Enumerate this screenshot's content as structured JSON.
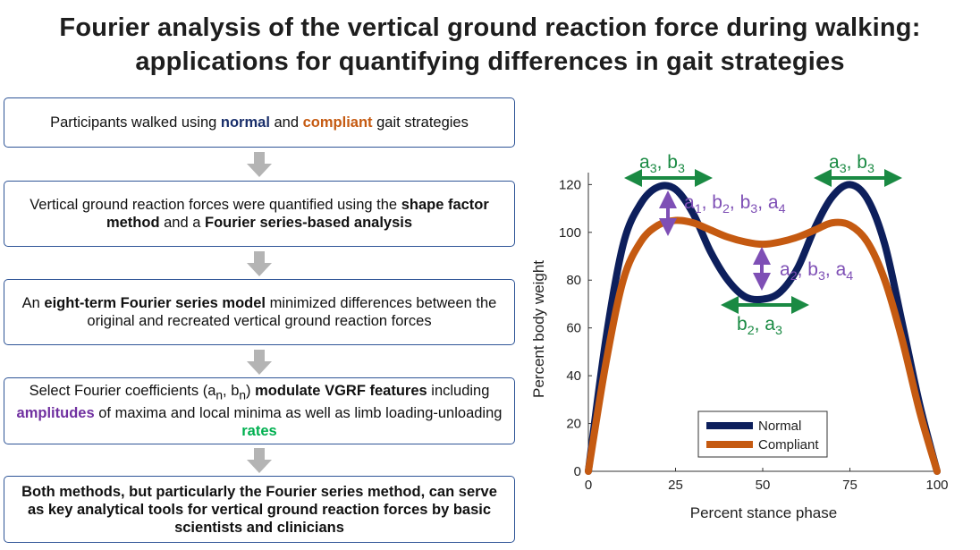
{
  "title": {
    "line1": "Fourier analysis of the vertical ground reaction force during walking:",
    "line2": "applications for quantifying differences in gait strategies"
  },
  "flow": {
    "box1": {
      "t1": "Participants walked using ",
      "normal": "normal",
      "t2": " and ",
      "compliant": "compliant",
      "t3": " gait strategies"
    },
    "box2": {
      "t1": "Vertical ground reaction forces were quantified using the ",
      "b1": "shape factor method",
      "t2": " and a ",
      "b2": "Fourier series-based analysis"
    },
    "box3": {
      "t1": "An ",
      "b1": "eight-term Fourier series model",
      "t2": " minimized differences between the original and recreated vertical ground reaction forces"
    },
    "box4": {
      "t1": "Select Fourier coefficients (a",
      "s1": "n",
      "t2": ", b",
      "s2": "n",
      "t3": ") ",
      "b1": "modulate VGRF features",
      "t4": " including ",
      "amplitudes": "amplitudes",
      "t5": " of maxima and local minima as well as limb loading-unloading ",
      "rates": "rates"
    },
    "box5": {
      "text": "Both methods, but particularly the Fourier series method, can serve as key analytical tools for vertical ground reaction forces by basic scientists and clinicians"
    }
  },
  "chart_data": {
    "type": "line",
    "xlabel": "Percent stance phase",
    "ylabel": "Percent body weight",
    "xlim": [
      0,
      100
    ],
    "ylim": [
      0,
      125
    ],
    "xticks": [
      0,
      25,
      50,
      75,
      100
    ],
    "yticks": [
      0,
      20,
      40,
      60,
      80,
      100,
      120
    ],
    "grid": false,
    "legend": "bottom-center",
    "series": [
      {
        "name": "Normal",
        "color": "#0d1f5c",
        "x": [
          0,
          5,
          10,
          15,
          20,
          25,
          30,
          35,
          40,
          45,
          50,
          55,
          60,
          65,
          70,
          75,
          80,
          85,
          90,
          95,
          100
        ],
        "y": [
          0,
          55,
          95,
          112,
          119,
          118,
          108,
          92,
          80,
          73,
          72,
          75,
          85,
          102,
          115,
          120,
          114,
          95,
          62,
          28,
          0
        ]
      },
      {
        "name": "Compliant",
        "color": "#c55a11",
        "x": [
          0,
          5,
          10,
          15,
          20,
          25,
          30,
          35,
          40,
          45,
          50,
          55,
          60,
          65,
          70,
          75,
          80,
          85,
          90,
          95,
          100
        ],
        "y": [
          0,
          45,
          80,
          96,
          103,
          105,
          104,
          101,
          98,
          96,
          95,
          96,
          98,
          101,
          104,
          103,
          96,
          80,
          55,
          25,
          0
        ]
      }
    ],
    "annotations": {
      "green_color": "#1a8a43",
      "purple_color": "#7e4fb5",
      "left_top": {
        "a": "a",
        "s1": "3",
        "m": ", b",
        "s2": "3"
      },
      "right_top": {
        "a": "a",
        "s1": "3",
        "m": ", b",
        "s2": "3"
      },
      "bottom_mid": {
        "a": "b",
        "s1": "2",
        "m": ", a",
        "s2": "3"
      },
      "peak_amp": {
        "t1": "a",
        "s1": "1",
        "t2": ", b",
        "s2": "2",
        "t3": ", b",
        "s3": "3",
        "t4": ", a",
        "s4": "4"
      },
      "valley_amp": {
        "t1": "a",
        "s1": "2",
        "t2": ", b",
        "s2": "3",
        "t3": ", a",
        "s3": "4"
      }
    }
  }
}
